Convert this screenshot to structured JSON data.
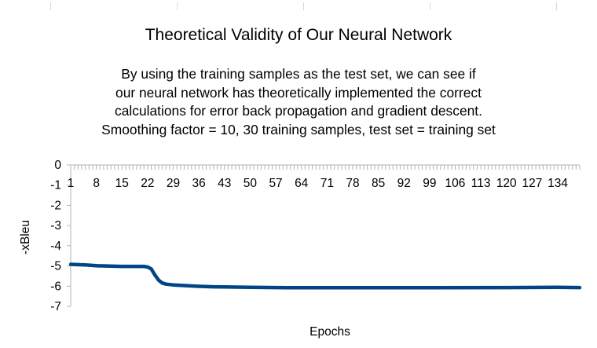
{
  "chart_data": {
    "type": "line",
    "title": "Theoretical Validity of Our Neural Network",
    "subtitle_lines": [
      "By using the training samples as the test set, we can see if",
      "our neural network has theoretically implemented the correct",
      "calculations for error back propagation and gradient descent.",
      "Smoothing factor = 10, 30 training samples, test set = training set"
    ],
    "xlabel": "Epochs",
    "ylabel": "-xBleu",
    "ylim": [
      -7,
      0
    ],
    "y_ticks": [
      "0",
      "-1",
      "-2",
      "-3",
      "-4",
      "-5",
      "-6",
      "-7"
    ],
    "x_tick_labels": [
      "1",
      "8",
      "15",
      "22",
      "29",
      "36",
      "43",
      "50",
      "57",
      "64",
      "71",
      "78",
      "85",
      "92",
      "99",
      "106",
      "113",
      "120",
      "127",
      "134"
    ],
    "x_count": 140,
    "grid": false,
    "series_color": "#004586",
    "series": [
      {
        "x": [
          1,
          5,
          8,
          12,
          15,
          18,
          21,
          22,
          23,
          24,
          25,
          26,
          27,
          29,
          32,
          36,
          40,
          43,
          50,
          60,
          80,
          100,
          120,
          134,
          140
        ],
        "values": [
          -4.92,
          -4.95,
          -4.99,
          -5.01,
          -5.02,
          -5.02,
          -5.02,
          -5.05,
          -5.15,
          -5.45,
          -5.7,
          -5.84,
          -5.9,
          -5.94,
          -5.97,
          -6.01,
          -6.03,
          -6.04,
          -6.06,
          -6.08,
          -6.08,
          -6.08,
          -6.07,
          -6.06,
          -6.07
        ]
      }
    ]
  }
}
